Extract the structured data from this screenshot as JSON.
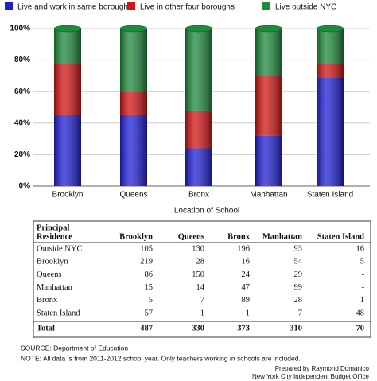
{
  "chart_data": {
    "type": "stacked_bar",
    "categories": [
      "Brooklyn",
      "Queens",
      "Bronx",
      "Manhattan",
      "Staten Island"
    ],
    "series": [
      {
        "name": "Live and work in same borough",
        "color": "#1f1fd6",
        "values": [
          45,
          45,
          24,
          32,
          69
        ]
      },
      {
        "name": "Live in other four boroughs",
        "color": "#d41414",
        "values": [
          33,
          15,
          24,
          38,
          9
        ]
      },
      {
        "name": "Live outside NYC",
        "color": "#1e8a3c",
        "values": [
          22,
          40,
          52,
          30,
          22
        ]
      }
    ],
    "x_label": "Location of School",
    "ylim": [
      0,
      100
    ],
    "yticks": [
      {
        "value": 0,
        "label": "0%"
      },
      {
        "value": 20,
        "label": "20%"
      },
      {
        "value": 40,
        "label": "40%"
      },
      {
        "value": 60,
        "label": "60%"
      },
      {
        "value": 80,
        "label": "80%"
      },
      {
        "value": 100,
        "label": "100%"
      }
    ],
    "grid": true,
    "legend": "top"
  },
  "table": {
    "row_header": [
      "Principal",
      "Residence"
    ],
    "columns": [
      "Brooklyn",
      "Queens",
      "Bronx",
      "Manhattan",
      "Staten Island"
    ],
    "rows": [
      [
        "Outside NYC",
        105,
        130,
        196,
        93,
        16
      ],
      [
        "Brooklyn",
        219,
        28,
        16,
        54,
        5
      ],
      [
        "Queens",
        86,
        150,
        24,
        29,
        "-"
      ],
      [
        "Manhattan",
        15,
        14,
        47,
        99,
        "-"
      ],
      [
        "Bronx",
        5,
        7,
        89,
        28,
        1
      ],
      [
        "Staten Island",
        57,
        1,
        1,
        7,
        48
      ]
    ],
    "total": [
      "Total",
      487,
      330,
      373,
      310,
      70
    ]
  },
  "source": "SOURCE:  Department of Education",
  "note": "NOTE: All data is from 2011-2012 school year.  Only teachers working in schools are included.",
  "credit": [
    "Prepared by Raymond Domanico",
    "New York City Independent Budget Office"
  ]
}
